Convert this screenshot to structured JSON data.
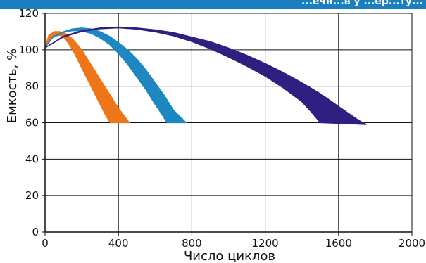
{
  "header": {
    "text": "...ечн...в  у   ...ер...ту..."
  },
  "chart_data": {
    "type": "area",
    "title": "",
    "xlabel": "Число циклов",
    "ylabel": "Емкость, %",
    "xlim": [
      0,
      2000
    ],
    "ylim": [
      0,
      120
    ],
    "xticks": [
      0,
      400,
      800,
      1200,
      1600,
      2000
    ],
    "yticks": [
      0,
      20,
      40,
      60,
      80,
      100,
      120
    ],
    "grid": true,
    "legend": "none",
    "series": [
      {
        "color": "#ef7618",
        "upper": {
          "x": [
            0,
            20,
            50,
            80,
            110,
            150,
            200,
            250,
            300,
            350,
            400,
            430,
            460
          ],
          "y": [
            101,
            108,
            110,
            110,
            109,
            106,
            100,
            92,
            84,
            76,
            68,
            64,
            60
          ]
        },
        "lower": {
          "x": [
            0,
            20,
            50,
            80,
            110,
            150,
            190,
            230,
            270,
            300,
            330,
            355
          ],
          "y": [
            101,
            104.5,
            107.5,
            108,
            106,
            100,
            92,
            84,
            76,
            70,
            64,
            60
          ]
        }
      },
      {
        "color": "#1d87c2",
        "upper": {
          "x": [
            0,
            40,
            100,
            150,
            200,
            250,
            300,
            350,
            400,
            450,
            500,
            550,
            600,
            650,
            700,
            740,
            770
          ],
          "y": [
            101,
            107,
            110,
            111.5,
            112,
            111.5,
            110,
            107.5,
            104,
            100,
            95,
            89,
            82,
            75,
            67,
            63,
            60
          ]
        },
        "lower": {
          "x": [
            0,
            40,
            100,
            150,
            200,
            250,
            300,
            350,
            400,
            450,
            500,
            550,
            600,
            640,
            665
          ],
          "y": [
            101,
            106.5,
            109.5,
            110.5,
            110.3,
            109,
            106.5,
            103,
            98,
            92,
            85,
            78,
            70,
            64,
            60
          ]
        }
      },
      {
        "color": "#2e1f80",
        "upper": {
          "x": [
            0,
            100,
            200,
            300,
            400,
            500,
            600,
            700,
            800,
            900,
            1000,
            1100,
            1200,
            1300,
            1400,
            1500,
            1600,
            1700,
            1750
          ],
          "y": [
            101,
            107.5,
            110.5,
            112,
            112.5,
            112,
            111,
            109.5,
            107,
            104.5,
            101,
            97,
            92.5,
            87.5,
            82,
            76,
            69,
            62,
            59
          ]
        },
        "lower": {
          "x": [
            0,
            100,
            200,
            300,
            400,
            500,
            600,
            700,
            800,
            900,
            1000,
            1100,
            1200,
            1300,
            1400,
            1450,
            1500
          ],
          "y": [
            101,
            107,
            110,
            111.5,
            112,
            111.3,
            109.8,
            107.6,
            104.5,
            100.5,
            96,
            91,
            85.5,
            79,
            71.5,
            66,
            60
          ]
        }
      }
    ]
  }
}
